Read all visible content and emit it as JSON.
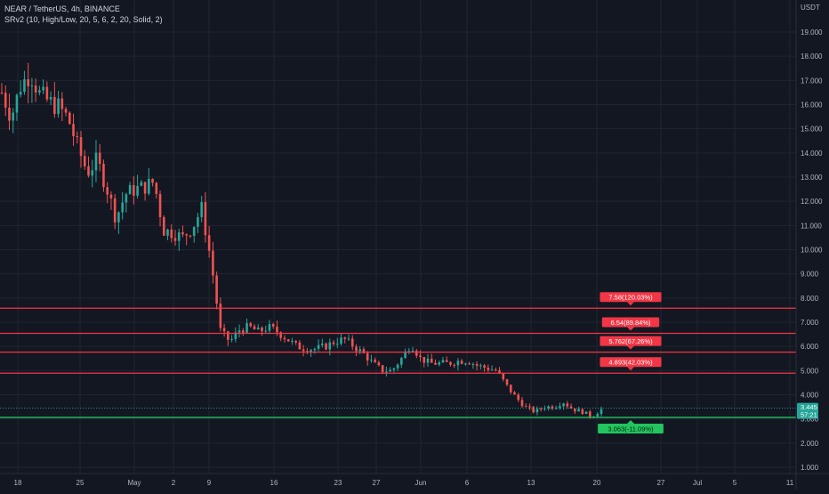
{
  "chart_data": {
    "type": "candlestick",
    "title": "NEAR / TetherUS, 4h, BINANCE",
    "indicator": "SRv2 (10, High/Low, 20, 5, 6, 2, 20, Solid, 2)",
    "currency": "USDT",
    "ylim": [
      0.6,
      20.2
    ],
    "y_ticks": [
      "1.000",
      "2.000",
      "3.000",
      "4.000",
      "5.000",
      "6.000",
      "7.000",
      "8.000",
      "9.000",
      "10.000",
      "11.000",
      "12.000",
      "13.000",
      "14.000",
      "15.000",
      "16.000",
      "17.000",
      "18.000",
      "19.000"
    ],
    "x_ticks": [
      "18",
      "25",
      "May",
      "2",
      "9",
      "16",
      "23",
      "27",
      "Jun",
      "6",
      "13",
      "20",
      "27",
      "Jul",
      "5",
      "11"
    ],
    "current_price": {
      "value": 3.445,
      "label": "3.445",
      "countdown": "57:21",
      "color": "#26a69a"
    },
    "levels": [
      {
        "value": 7.58,
        "label": "7.58(120.03%)",
        "color": "#f23645",
        "type": "resistance"
      },
      {
        "value": 6.54,
        "label": "6.54(89.84%)",
        "color": "#f23645",
        "type": "resistance"
      },
      {
        "value": 5.762,
        "label": "5.762(67.26%)",
        "color": "#f23645",
        "type": "resistance"
      },
      {
        "value": 4.893,
        "label": "4.893(42.03%)",
        "color": "#f23645",
        "type": "resistance"
      },
      {
        "value": 3.063,
        "label": "3.063(-11.09%)",
        "color": "#22c55e",
        "type": "support"
      }
    ],
    "price_path": [
      [
        "Apr 18",
        16.5
      ],
      [
        "Apr 19",
        15.5
      ],
      [
        "Apr 20",
        16.8
      ],
      [
        "Apr 21",
        17.3
      ],
      [
        "Apr 22",
        16.4
      ],
      [
        "Apr 23",
        16.1
      ],
      [
        "Apr 24",
        15.9
      ],
      [
        "Apr 25",
        15.4
      ],
      [
        "Apr 26",
        14.2
      ],
      [
        "Apr 27",
        13.2
      ],
      [
        "Apr 28",
        13.7
      ],
      [
        "Apr 29",
        12.6
      ],
      [
        "Apr 30",
        11.3
      ],
      [
        "May 1",
        12.3
      ],
      [
        "May 2",
        12.5
      ],
      [
        "May 3",
        12.6
      ],
      [
        "May 4",
        12.8
      ],
      [
        "May 5",
        10.8
      ],
      [
        "May 6",
        10.7
      ],
      [
        "May 7",
        10.5
      ],
      [
        "May 8",
        10.9
      ],
      [
        "May 9",
        11.7
      ],
      [
        "May 10",
        9.5
      ],
      [
        "May 11",
        6.6
      ],
      [
        "May 12",
        6.2
      ],
      [
        "May 13",
        6.7
      ],
      [
        "May 14",
        6.8
      ],
      [
        "May 15",
        6.6
      ],
      [
        "May 16",
        6.8
      ],
      [
        "May 17",
        6.6
      ],
      [
        "May 18",
        6.3
      ],
      [
        "May 19",
        6.0
      ],
      [
        "May 20",
        5.9
      ],
      [
        "May 21",
        5.9
      ],
      [
        "May 22",
        6.0
      ],
      [
        "May 23",
        6.2
      ],
      [
        "May 24",
        6.3
      ],
      [
        "May 25",
        6.0
      ],
      [
        "May 26",
        5.7
      ],
      [
        "May 27",
        5.3
      ],
      [
        "May 28",
        5.0
      ],
      [
        "May 29",
        5.0
      ],
      [
        "May 30",
        5.5
      ],
      [
        "May 31",
        6.1
      ],
      [
        "Jun 1",
        5.5
      ],
      [
        "Jun 2",
        5.3
      ],
      [
        "Jun 3",
        5.3
      ],
      [
        "Jun 4",
        5.3
      ],
      [
        "Jun 5",
        5.4
      ],
      [
        "Jun 6",
        5.4
      ],
      [
        "Jun 7",
        5.2
      ],
      [
        "Jun 8",
        5.1
      ],
      [
        "Jun 9",
        5.0
      ],
      [
        "Jun 10",
        4.4
      ],
      [
        "Jun 11",
        3.9
      ],
      [
        "Jun 12",
        3.5
      ],
      [
        "Jun 13",
        3.3
      ],
      [
        "Jun 14",
        3.5
      ],
      [
        "Jun 15",
        3.5
      ],
      [
        "Jun 16",
        3.7
      ],
      [
        "Jun 17",
        3.4
      ],
      [
        "Jun 18",
        3.3
      ],
      [
        "Jun 19",
        3.1
      ],
      [
        "Jun 20",
        3.4
      ]
    ],
    "colors": {
      "up": "#26a69a",
      "down": "#ef5350",
      "background": "#131722",
      "grid": "#1f2430",
      "text": "#b2b5be"
    }
  }
}
